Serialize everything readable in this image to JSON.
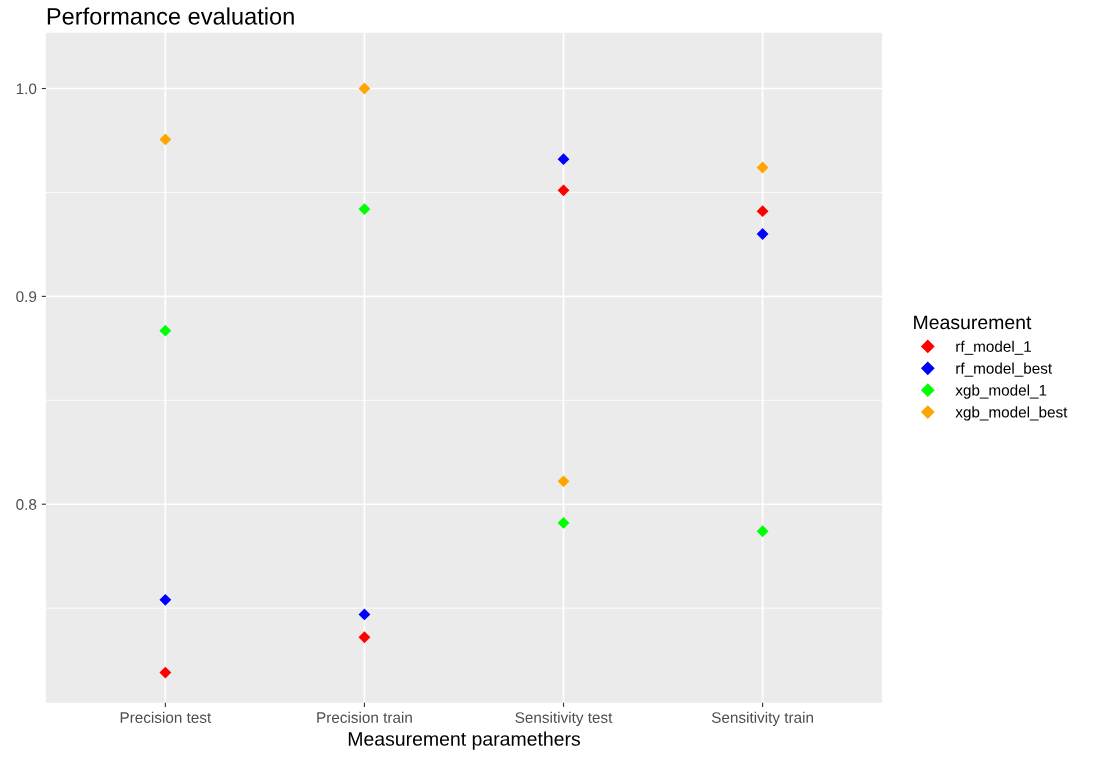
{
  "chart_data": {
    "type": "scatter",
    "title": "Performance evaluation",
    "xlabel": "Measurement paramethers",
    "legend_title": "Measurement",
    "categories": [
      "Precision test",
      "Precision train",
      "Sensitivity test",
      "Sensitivity train"
    ],
    "series": [
      {
        "name": "rf_model_1",
        "color": "#ff0000",
        "values": [
          0.719,
          0.736,
          0.951,
          0.941
        ]
      },
      {
        "name": "rf_model_best",
        "color": "#0000ff",
        "values": [
          0.754,
          0.747,
          0.966,
          0.93
        ]
      },
      {
        "name": "xgb_model_1",
        "color": "#00ff00",
        "values": [
          0.8835,
          0.942,
          0.791,
          0.787
        ]
      },
      {
        "name": "xgb_model_best",
        "color": "#ffa500",
        "values": [
          0.9755,
          1.0,
          0.811,
          0.962
        ]
      }
    ],
    "ylim": [
      0.7045,
      1.0268
    ],
    "yticks": [
      0.8,
      0.9,
      {
        "value": 1.0,
        "label": "1.0"
      }
    ],
    "grid": true,
    "legend": "right",
    "marker": "diamond"
  }
}
